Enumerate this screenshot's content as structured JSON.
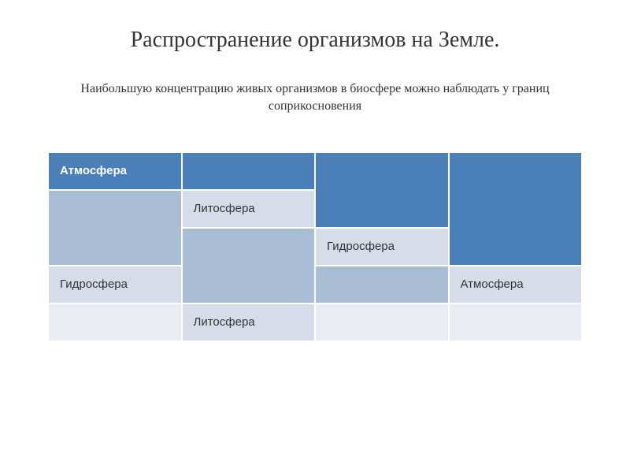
{
  "title": "Распространение организмов на Земле.",
  "subtitle": "Наибольшую концентрацию живых организмов в биосфере можно наблюдать у границ соприкосновения",
  "table": {
    "type": "table",
    "columns": 4,
    "rows_count": 5,
    "colors": {
      "header_dark": "#4a7fb8",
      "light_blue": "#d6dde8",
      "mid_blue": "#a9bdd5",
      "plain_light": "#e9edf3",
      "border": "#ffffff",
      "text_dark": "#333333",
      "text_light": "#ffffff"
    },
    "font_family": "Arial",
    "font_size": 15,
    "cells": {
      "r0c0": "Атмосфера",
      "r0c1": "",
      "r0c2": "",
      "r0c3": "",
      "r1c0": "",
      "r1c1": "Литосфера",
      "r2c1": "",
      "r2c2": "Гидросфера",
      "r3c0": "Гидросфера",
      "r3c1": "",
      "r3c2": "",
      "r3c3": "Атмосфера",
      "r4c0": "",
      "r4c1": "Литосфера",
      "r4c2": "",
      "r4c3": ""
    }
  }
}
